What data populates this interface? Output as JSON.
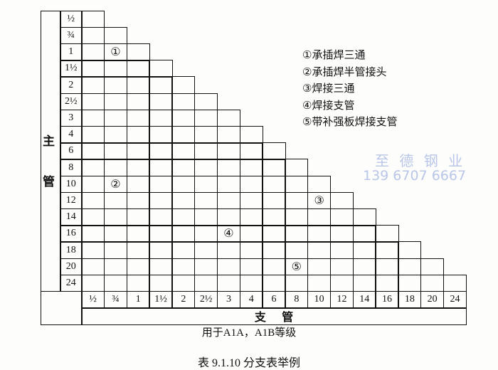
{
  "table": {
    "main_pipe_label": [
      "主",
      "管"
    ],
    "branch_pipe_label": "支    管",
    "sizes": [
      "½",
      "¾",
      "1",
      "1½",
      "2",
      "2½",
      "3",
      "4",
      "6",
      "8",
      "10",
      "12",
      "14",
      "16",
      "18",
      "20",
      "24"
    ],
    "markers": [
      {
        "symbol": "①",
        "main_size": "1",
        "branch_size": "¾"
      },
      {
        "symbol": "②",
        "main_size": "10",
        "branch_size": "¾"
      },
      {
        "symbol": "③",
        "main_size": "12",
        "branch_size": "10"
      },
      {
        "symbol": "④",
        "main_size": "16",
        "branch_size": "3"
      },
      {
        "symbol": "⑤",
        "main_size": "20",
        "branch_size": "8"
      }
    ]
  },
  "legend": [
    "①承插焊三通",
    "②承插焊半管接头",
    "③焊接三通",
    "④焊接支管",
    "⑤带补强板焊接支管"
  ],
  "watermark": {
    "company": "至 德 钢 业",
    "phone": "139 6707 6667",
    "color": "#b9c6e8"
  },
  "note": "用于A1A，A1B等级",
  "caption": "表 9.1.10    分支表举例"
}
